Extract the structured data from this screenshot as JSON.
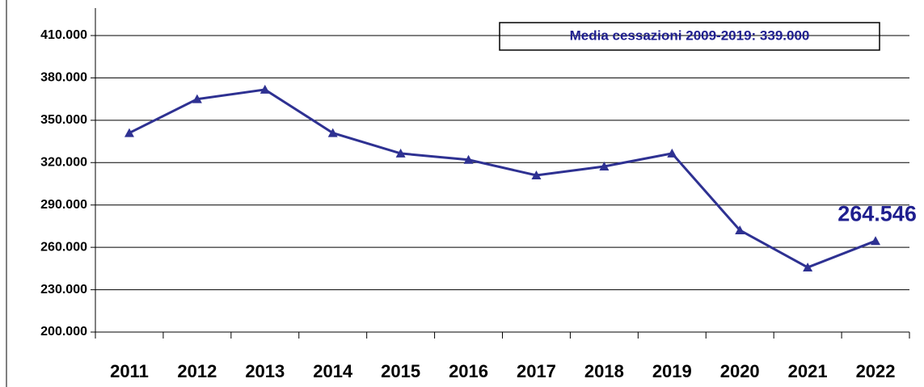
{
  "chart_data": {
    "type": "line",
    "annotation": "Media cessazioni 2009-2019: 339.000",
    "categories": [
      "2011",
      "2012",
      "2013",
      "2014",
      "2015",
      "2016",
      "2017",
      "2018",
      "2019",
      "2020",
      "2021",
      "2022"
    ],
    "series": [
      {
        "color": "#2e3192",
        "values": [
          341000,
          365000,
          371700,
          341000,
          326500,
          322000,
          311000,
          317300,
          326500,
          272100,
          245800,
          264546
        ],
        "value_labels": [
          null,
          null,
          null,
          null,
          null,
          null,
          null,
          null,
          null,
          null,
          null,
          "264.546"
        ]
      }
    ],
    "ylim": [
      200000,
      410000
    ],
    "yticks": [
      {
        "value": 200000,
        "label": "200.000"
      },
      {
        "value": 230000,
        "label": "230.000"
      },
      {
        "value": 260000,
        "label": "260.000"
      },
      {
        "value": 290000,
        "label": "290.000"
      },
      {
        "value": 320000,
        "label": "320.000"
      },
      {
        "value": 350000,
        "label": "350.000"
      },
      {
        "value": 380000,
        "label": "380.000"
      },
      {
        "value": 410000,
        "label": "410.000"
      }
    ],
    "grid": true
  }
}
